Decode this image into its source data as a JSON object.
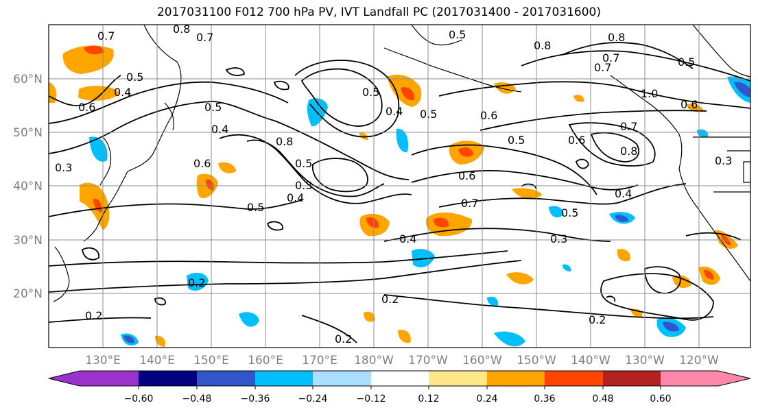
{
  "title": "2017031100 F012 700 hPa PV, IVT Landfall PC (2017031400 - 2017031600)",
  "lat_labels": [
    "60°N",
    "50°N",
    "40°N",
    "30°N",
    "20°N"
  ],
  "lon_labels": [
    "130°E",
    "140°E",
    "150°E",
    "160°E",
    "170°E",
    "180°W",
    "170°W",
    "160°W",
    "150°W",
    "140°W",
    "130°W",
    "120°W"
  ],
  "colorbar": {
    "ticks": [
      "−0.60",
      "−0.48",
      "−0.36",
      "−0.24",
      "−0.12",
      "0.12",
      "0.24",
      "0.36",
      "0.48",
      "0.60"
    ],
    "colors": [
      "#9933cc",
      "#000080",
      "#3355cc",
      "#00bfff",
      "#aadfff",
      "#ffffff",
      "#ffe88a",
      "#ffa500",
      "#ff4500",
      "#b22222",
      "#ff88aa"
    ]
  },
  "contour_labels": [
    "0.8",
    "0.7",
    "0.7",
    "0.6",
    "0.4",
    "0.5",
    "0.5",
    "0.4",
    "0.6",
    "0.3",
    "0.5",
    "0.8",
    "0.3",
    "0.4",
    "0.5",
    "0.4",
    "0.5",
    "0.7",
    "0.2",
    "0.2",
    "0.2",
    "0.2",
    "0.3",
    "0.4",
    "0.5",
    "0.6",
    "0.5",
    "0.6",
    "0.7",
    "0.8",
    "0.6",
    "0.4",
    "0.7",
    "0.5",
    "0.3",
    "0.2",
    "0.5",
    "0.7",
    "1.0",
    "0.8",
    "0.6",
    "0.8",
    "0.5"
  ]
}
